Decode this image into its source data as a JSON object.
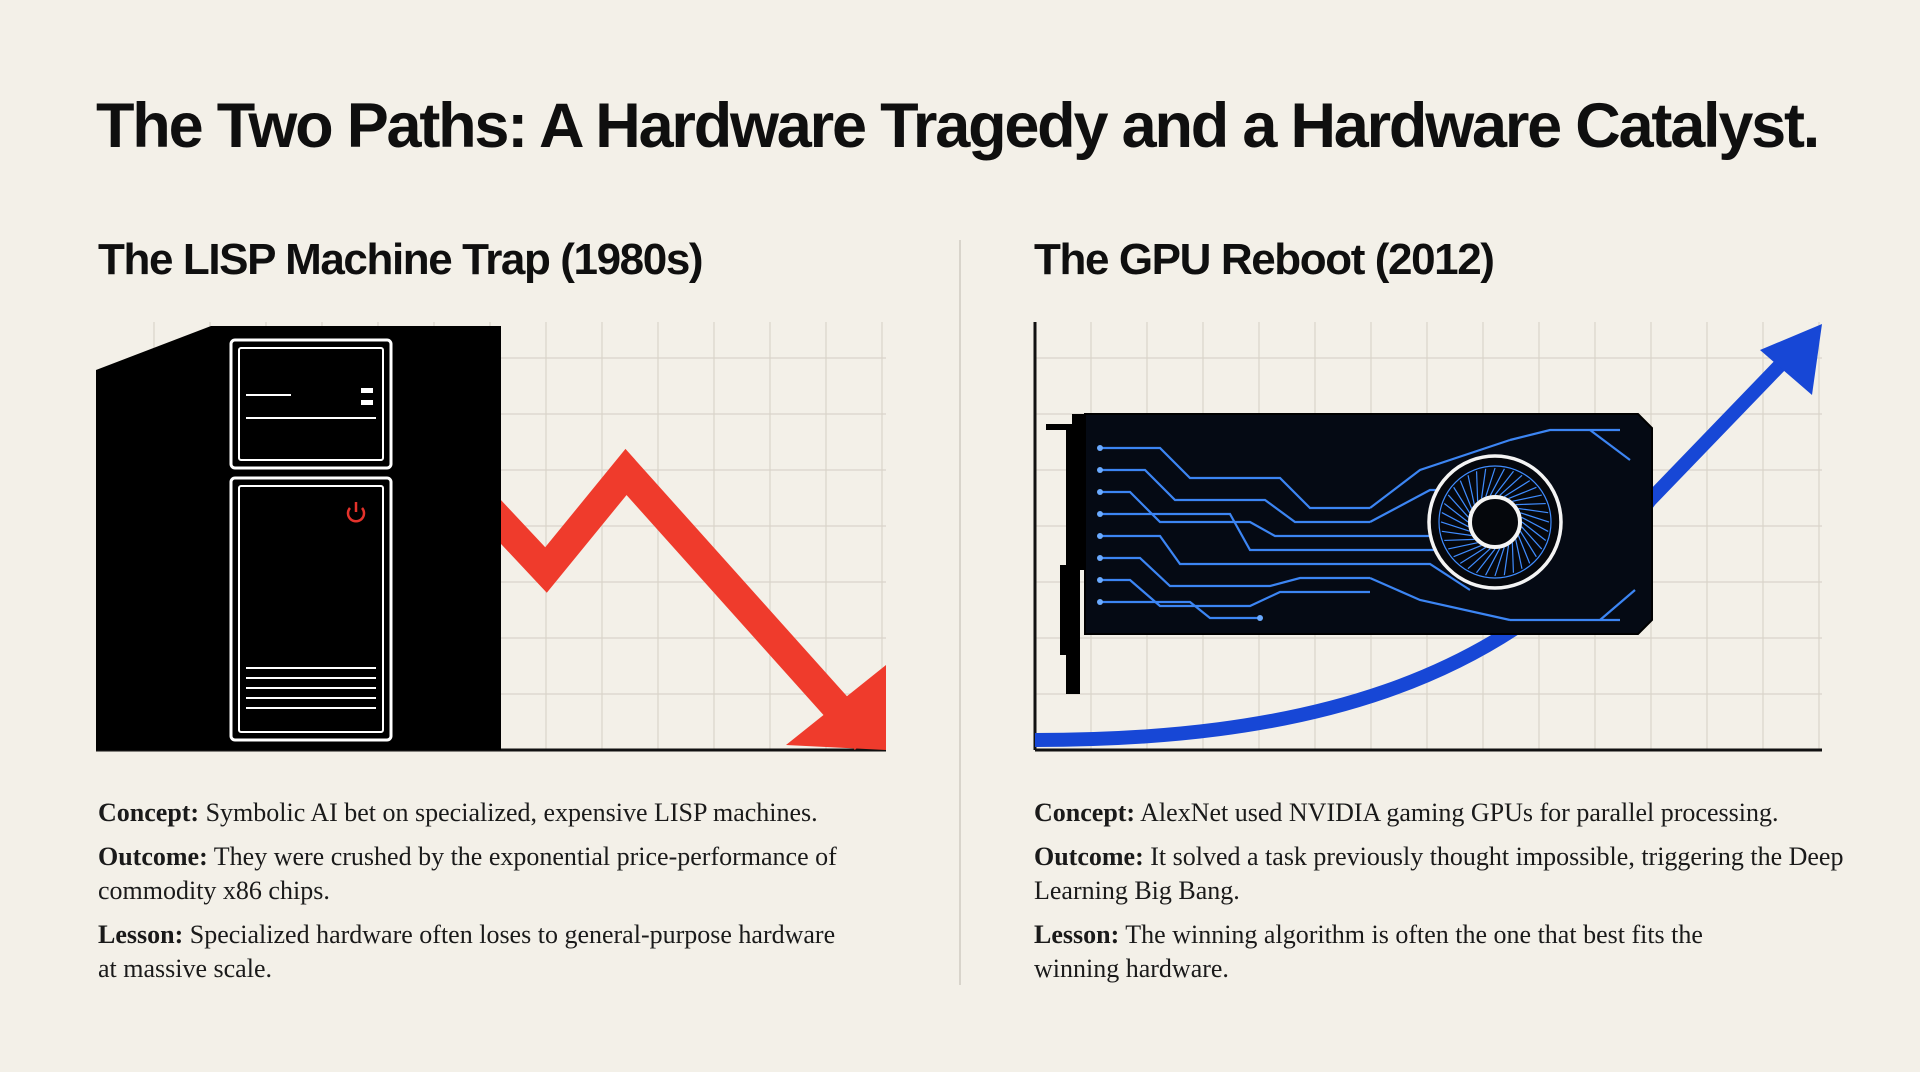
{
  "title": "The Two Paths: A Hardware Tragedy and a Hardware Catalyst.",
  "colors": {
    "background": "#f3f0e8",
    "decline_arrow": "#ef3b2c",
    "growth_arrow": "#1747d6",
    "circuit_glow": "#3f8cff",
    "power_led": "#e4322b"
  },
  "left": {
    "heading": "The LISP Machine Trap (1980s)",
    "icon": "computer-tower-icon",
    "trend": "decline",
    "concept_label": "Concept:",
    "concept_text": " Symbolic AI bet on specialized, expensive LISP machines.",
    "outcome_label": "Outcome:",
    "outcome_text": " They were crushed by the exponential price-performance of commodity x86 chips.",
    "lesson_label": "Lesson:",
    "lesson_text": " Specialized hardware often loses to general-purpose hardware at massive scale."
  },
  "right": {
    "heading": "The GPU Reboot (2012)",
    "icon": "gpu-card-icon",
    "trend": "exponential growth",
    "concept_label": "Concept:",
    "concept_text": " AlexNet used NVIDIA gaming GPUs for parallel processing.",
    "outcome_label": "Outcome:",
    "outcome_text": " It solved a task previously thought impossible, triggering the Deep Learning Big Bang.",
    "lesson_label": "Lesson:",
    "lesson_text": " The winning algorithm is often the one that best fits the winning hardware."
  }
}
